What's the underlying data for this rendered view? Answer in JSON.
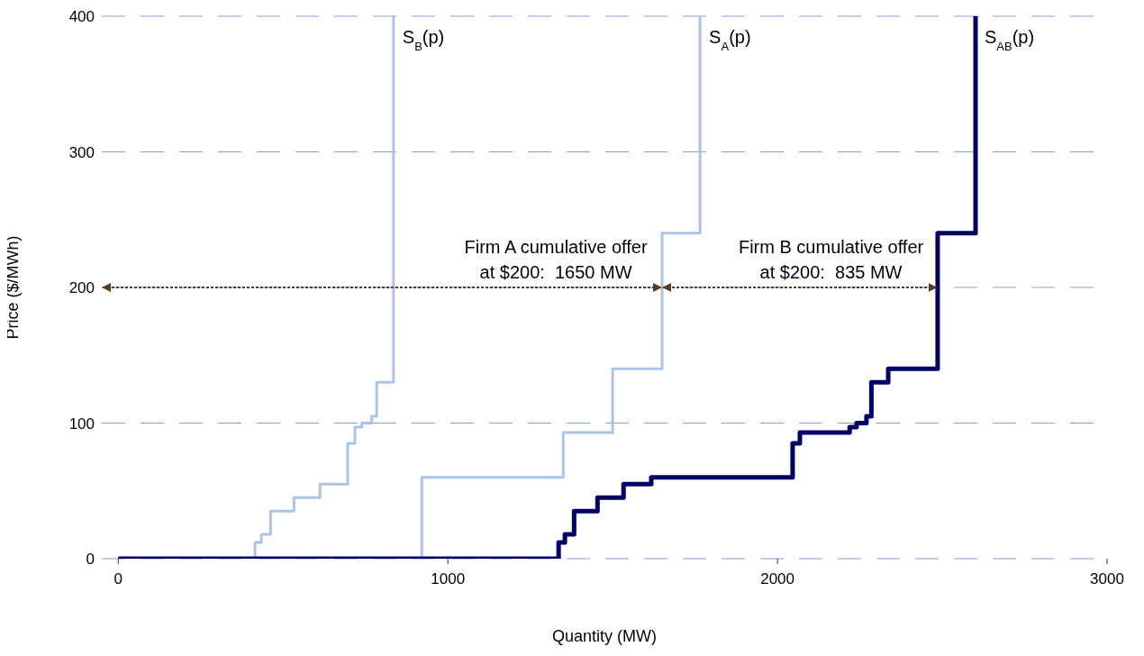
{
  "chart_data": {
    "type": "step",
    "xlabel": "Quantity (MW)",
    "ylabel": "Price ($/MWh)",
    "xlim": [
      -50,
      3000
    ],
    "xticks": [
      0,
      1000,
      2000,
      3000
    ],
    "ylim": [
      0,
      400
    ],
    "yticks": [
      0,
      100,
      200,
      300,
      400
    ],
    "grid": "y",
    "legend": false,
    "series": [
      {
        "name": "S$_{B}$(p)",
        "color": "#a9c4e8",
        "x": [
          0,
          415,
          434,
          462,
          533,
          612,
          696,
          718,
          739,
          769,
          784,
          835
        ],
        "values": [
          0,
          12,
          18,
          35,
          45,
          55,
          85,
          97,
          100,
          105,
          130,
          400
        ]
      },
      {
        "name": "S$_{A}$(p)",
        "color": "#a9c4e8",
        "x": [
          0,
          921,
          1350,
          1500,
          1650,
          1765
        ],
        "values": [
          0,
          60,
          93,
          140,
          240,
          400
        ]
      },
      {
        "name": "S$_{AB}$(p)",
        "color": "#000066",
        "x": [
          0,
          1336,
          1355,
          1383,
          1454,
          1533,
          1617,
          2046,
          2068,
          2219,
          2240,
          2270,
          2285,
          2336,
          2486,
          2601
        ],
        "values": [
          0,
          12,
          18,
          35,
          45,
          55,
          60,
          85,
          93,
          97,
          100,
          105,
          130,
          140,
          240,
          400
        ]
      }
    ],
    "annotations": [
      {
        "text": "Firm A cumulative offer at $200:  1650 MW",
        "x": 1650,
        "y": 200
      },
      {
        "text": "Firm B cumulative offer at $200:  835 MW",
        "x": 2485,
        "y": 200
      }
    ]
  }
}
